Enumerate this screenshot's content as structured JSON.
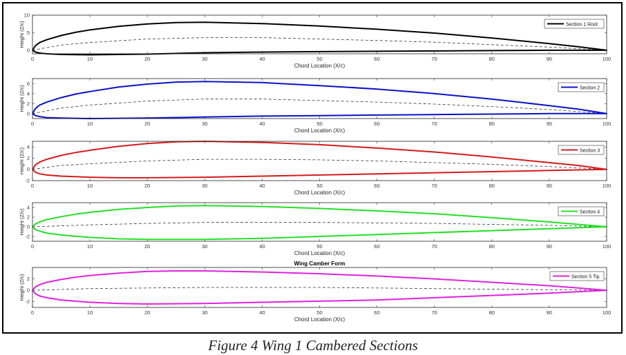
{
  "figure": {
    "caption": "Figure 4 Wing 1 Cambered Sections"
  },
  "chart_data": [
    {
      "type": "line",
      "legend": "Section 1 Root",
      "legend_position": "top-right",
      "color": "#000000",
      "title": "",
      "xlabel": "Chord Location (X/c)",
      "ylabel": "Height (Z/c)",
      "xlim": [
        0,
        100
      ],
      "ylim": [
        -1,
        10
      ],
      "xticks": [
        "0",
        "10",
        "20",
        "30",
        "40",
        "50",
        "60",
        "70",
        "80",
        "90",
        "100"
      ],
      "yticks": [
        "0",
        "5",
        "10"
      ],
      "upper": [
        [
          0,
          0
        ],
        [
          0.5,
          1.3
        ],
        [
          1.25,
          2.2
        ],
        [
          2.5,
          3.0
        ],
        [
          5,
          4.2
        ],
        [
          7.5,
          5.1
        ],
        [
          10,
          5.8
        ],
        [
          15,
          6.8
        ],
        [
          20,
          7.5
        ],
        [
          25,
          7.9
        ],
        [
          30,
          8.0
        ],
        [
          40,
          7.6
        ],
        [
          50,
          6.9
        ],
        [
          60,
          6.0
        ],
        [
          70,
          4.9
        ],
        [
          80,
          3.5
        ],
        [
          90,
          1.9
        ],
        [
          95,
          1.0
        ],
        [
          100,
          0
        ]
      ],
      "lower": [
        [
          0,
          0
        ],
        [
          0.5,
          -0.5
        ],
        [
          1.25,
          -0.8
        ],
        [
          2.5,
          -1.0
        ],
        [
          5,
          -1.2
        ],
        [
          10,
          -1.3
        ],
        [
          20,
          -1.1
        ],
        [
          30,
          -0.7
        ],
        [
          40,
          -0.5
        ],
        [
          50,
          -0.4
        ],
        [
          60,
          -0.3
        ],
        [
          70,
          -0.2
        ],
        [
          80,
          -0.1
        ],
        [
          90,
          0
        ],
        [
          100,
          0
        ]
      ],
      "camber": [
        [
          0,
          0
        ],
        [
          5,
          1.5
        ],
        [
          10,
          2.2
        ],
        [
          20,
          3.2
        ],
        [
          30,
          3.6
        ],
        [
          40,
          3.6
        ],
        [
          50,
          3.2
        ],
        [
          60,
          2.8
        ],
        [
          70,
          2.3
        ],
        [
          80,
          1.6
        ],
        [
          90,
          0.9
        ],
        [
          100,
          0
        ]
      ]
    },
    {
      "type": "line",
      "legend": "Section 2",
      "legend_position": "top-right",
      "color": "#0a10c8",
      "title": "",
      "xlabel": "Chord Location (X/c)",
      "ylabel": "Height (Z/c)",
      "xlim": [
        0,
        100
      ],
      "ylim": [
        -1,
        7
      ],
      "xticks": [
        "0",
        "10",
        "20",
        "30",
        "40",
        "50",
        "60",
        "70",
        "80",
        "90",
        "100"
      ],
      "yticks": [
        "0",
        "2",
        "4",
        "6"
      ],
      "upper": [
        [
          0,
          0
        ],
        [
          0.5,
          1.0
        ],
        [
          1.25,
          1.7
        ],
        [
          2.5,
          2.3
        ],
        [
          5,
          3.2
        ],
        [
          7.5,
          3.9
        ],
        [
          10,
          4.4
        ],
        [
          15,
          5.3
        ],
        [
          20,
          5.9
        ],
        [
          25,
          6.3
        ],
        [
          30,
          6.4
        ],
        [
          40,
          6.2
        ],
        [
          50,
          5.6
        ],
        [
          60,
          4.9
        ],
        [
          70,
          4.0
        ],
        [
          80,
          2.9
        ],
        [
          90,
          1.6
        ],
        [
          95,
          0.9
        ],
        [
          100,
          0
        ]
      ],
      "lower": [
        [
          0,
          0
        ],
        [
          0.5,
          -0.4
        ],
        [
          1.25,
          -0.6
        ],
        [
          2.5,
          -0.8
        ],
        [
          5,
          -0.9
        ],
        [
          10,
          -1.0
        ],
        [
          20,
          -0.9
        ],
        [
          30,
          -0.7
        ],
        [
          40,
          -0.5
        ],
        [
          50,
          -0.4
        ],
        [
          60,
          -0.3
        ],
        [
          70,
          -0.2
        ],
        [
          80,
          -0.1
        ],
        [
          90,
          0
        ],
        [
          100,
          0
        ]
      ],
      "camber": [
        [
          0,
          0
        ],
        [
          5,
          1.1
        ],
        [
          10,
          1.7
        ],
        [
          20,
          2.5
        ],
        [
          30,
          2.9
        ],
        [
          40,
          2.9
        ],
        [
          50,
          2.6
        ],
        [
          60,
          2.3
        ],
        [
          70,
          1.9
        ],
        [
          80,
          1.4
        ],
        [
          90,
          0.8
        ],
        [
          100,
          0
        ]
      ]
    },
    {
      "type": "line",
      "legend": "Section 3",
      "legend_position": "top-right",
      "color": "#d41a1a",
      "title": "",
      "xlabel": "Chord Location (X/c)",
      "ylabel": "Height (Z/c)",
      "xlim": [
        0,
        100
      ],
      "ylim": [
        -2,
        5
      ],
      "xticks": [
        "0",
        "10",
        "20",
        "30",
        "40",
        "50",
        "60",
        "70",
        "80",
        "90",
        "100"
      ],
      "yticks": [
        "-2",
        "0",
        "2",
        "4"
      ],
      "upper": [
        [
          0,
          0
        ],
        [
          0.5,
          0.8
        ],
        [
          1.25,
          1.3
        ],
        [
          2.5,
          1.8
        ],
        [
          5,
          2.5
        ],
        [
          7.5,
          3.0
        ],
        [
          10,
          3.4
        ],
        [
          15,
          4.1
        ],
        [
          20,
          4.6
        ],
        [
          25,
          4.9
        ],
        [
          30,
          5.0
        ],
        [
          40,
          4.8
        ],
        [
          50,
          4.4
        ],
        [
          60,
          3.8
        ],
        [
          70,
          3.1
        ],
        [
          80,
          2.2
        ],
        [
          90,
          1.2
        ],
        [
          95,
          0.7
        ],
        [
          100,
          0
        ]
      ],
      "lower": [
        [
          0,
          0
        ],
        [
          0.5,
          -0.5
        ],
        [
          1.25,
          -0.8
        ],
        [
          2.5,
          -1.0
        ],
        [
          5,
          -1.2
        ],
        [
          10,
          -1.4
        ],
        [
          15,
          -1.5
        ],
        [
          20,
          -1.5
        ],
        [
          30,
          -1.4
        ],
        [
          40,
          -1.2
        ],
        [
          50,
          -1.0
        ],
        [
          60,
          -0.8
        ],
        [
          70,
          -0.6
        ],
        [
          80,
          -0.4
        ],
        [
          90,
          -0.2
        ],
        [
          100,
          0
        ]
      ],
      "camber": [
        [
          0,
          0
        ],
        [
          5,
          0.7
        ],
        [
          10,
          1.0
        ],
        [
          20,
          1.5
        ],
        [
          30,
          1.8
        ],
        [
          40,
          1.8
        ],
        [
          50,
          1.7
        ],
        [
          60,
          1.5
        ],
        [
          70,
          1.2
        ],
        [
          80,
          0.9
        ],
        [
          90,
          0.5
        ],
        [
          100,
          0
        ]
      ]
    },
    {
      "type": "line",
      "legend": "Section 4",
      "legend_position": "top-right",
      "color": "#22e022",
      "title": "",
      "xlabel": "Chord Location (X/c)",
      "ylabel": "Height (Z/c)",
      "xlim": [
        0,
        100
      ],
      "ylim": [
        -3,
        5
      ],
      "xticks": [
        "0",
        "10",
        "20",
        "30",
        "40",
        "50",
        "60",
        "70",
        "80",
        "90",
        "100"
      ],
      "yticks": [
        "-2",
        "0",
        "2",
        "4"
      ],
      "upper": [
        [
          0,
          0
        ],
        [
          0.5,
          0.6
        ],
        [
          1.25,
          1.0
        ],
        [
          2.5,
          1.5
        ],
        [
          5,
          2.1
        ],
        [
          7.5,
          2.6
        ],
        [
          10,
          3.0
        ],
        [
          15,
          3.6
        ],
        [
          20,
          4.0
        ],
        [
          25,
          4.3
        ],
        [
          30,
          4.4
        ],
        [
          40,
          4.2
        ],
        [
          50,
          3.8
        ],
        [
          60,
          3.3
        ],
        [
          70,
          2.7
        ],
        [
          80,
          1.9
        ],
        [
          90,
          1.0
        ],
        [
          95,
          0.5
        ],
        [
          100,
          0
        ]
      ],
      "lower": [
        [
          0,
          0
        ],
        [
          0.5,
          -0.6
        ],
        [
          1.25,
          -0.9
        ],
        [
          2.5,
          -1.3
        ],
        [
          5,
          -1.7
        ],
        [
          10,
          -2.2
        ],
        [
          15,
          -2.5
        ],
        [
          20,
          -2.6
        ],
        [
          30,
          -2.6
        ],
        [
          40,
          -2.4
        ],
        [
          50,
          -2.0
        ],
        [
          60,
          -1.6
        ],
        [
          70,
          -1.2
        ],
        [
          80,
          -0.8
        ],
        [
          90,
          -0.4
        ],
        [
          100,
          0
        ]
      ],
      "camber": [
        [
          0,
          0
        ],
        [
          10,
          0.4
        ],
        [
          20,
          0.7
        ],
        [
          30,
          0.9
        ],
        [
          40,
          0.9
        ],
        [
          50,
          0.9
        ],
        [
          60,
          0.8
        ],
        [
          70,
          0.7
        ],
        [
          80,
          0.5
        ],
        [
          90,
          0.3
        ],
        [
          100,
          0
        ]
      ]
    },
    {
      "type": "line",
      "legend": "Section 5 Tip",
      "legend_position": "top-right",
      "color": "#e020e0",
      "title": "Wing Camber Form",
      "xlabel": "Chord Location (X/c)",
      "ylabel": "Height (Z/c)",
      "xlim": [
        0,
        100
      ],
      "ylim": [
        -3,
        4
      ],
      "xticks": [
        "0",
        "10",
        "20",
        "30",
        "40",
        "50",
        "60",
        "70",
        "80",
        "90",
        "100"
      ],
      "yticks": [
        "-2",
        "0",
        "2"
      ],
      "upper": [
        [
          0,
          0
        ],
        [
          0.5,
          0.6
        ],
        [
          1.25,
          1.0
        ],
        [
          2.5,
          1.4
        ],
        [
          5,
          1.9
        ],
        [
          7.5,
          2.3
        ],
        [
          10,
          2.6
        ],
        [
          15,
          3.0
        ],
        [
          20,
          3.3
        ],
        [
          25,
          3.4
        ],
        [
          30,
          3.4
        ],
        [
          40,
          3.2
        ],
        [
          50,
          2.9
        ],
        [
          60,
          2.5
        ],
        [
          70,
          2.0
        ],
        [
          80,
          1.4
        ],
        [
          90,
          0.8
        ],
        [
          95,
          0.4
        ],
        [
          100,
          0
        ]
      ],
      "lower": [
        [
          0,
          0
        ],
        [
          0.5,
          -0.6
        ],
        [
          1.25,
          -1.0
        ],
        [
          2.5,
          -1.3
        ],
        [
          5,
          -1.7
        ],
        [
          10,
          -2.1
        ],
        [
          15,
          -2.3
        ],
        [
          20,
          -2.4
        ],
        [
          30,
          -2.3
        ],
        [
          40,
          -2.1
        ],
        [
          50,
          -1.9
        ],
        [
          60,
          -1.7
        ],
        [
          70,
          -1.3
        ],
        [
          80,
          -0.9
        ],
        [
          90,
          -0.5
        ],
        [
          100,
          0
        ]
      ],
      "camber": [
        [
          0,
          0
        ],
        [
          10,
          0.3
        ],
        [
          20,
          0.4
        ],
        [
          30,
          0.5
        ],
        [
          40,
          0.5
        ],
        [
          50,
          0.5
        ],
        [
          60,
          0.4
        ],
        [
          70,
          0.3
        ],
        [
          80,
          0.2
        ],
        [
          90,
          0.1
        ],
        [
          100,
          0
        ]
      ]
    }
  ]
}
